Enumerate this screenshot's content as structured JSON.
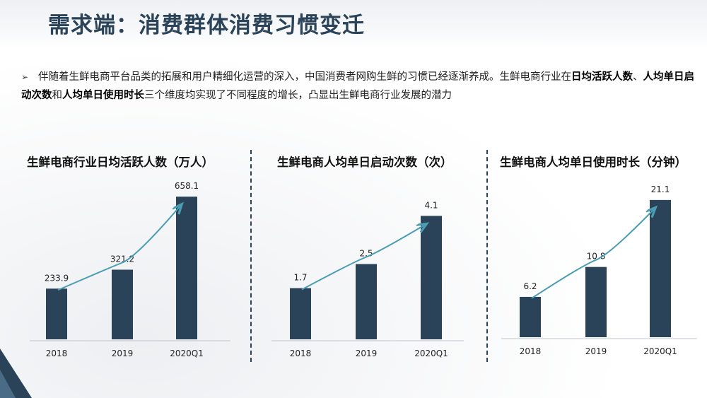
{
  "slide_title": "需求端：消费群体消费习惯变迁",
  "intro": {
    "bullet": "➢",
    "part1": "伴随着生鲜电商平台品类的拓展和用户精细化运营的深入，中国消费者网购生鲜的习惯已经逐渐养成。生鲜电商行业在",
    "bold1": "日均活跃人数",
    "sep1": "、",
    "bold2": "人均单日启动次数",
    "sep2": "和",
    "bold3": "人均单日使用时长",
    "part2": "三个维度均实现了不同程度的增长，凸显出生鲜电商行业发展的潜力"
  },
  "colors": {
    "bar": "#2b4358",
    "trend": "#4a9db3",
    "title": "#2b4358"
  },
  "chart_data": [
    {
      "type": "bar",
      "title": "生鲜电商行业日均活跃人数（万人）",
      "categories": [
        "2018",
        "2019",
        "2020Q1"
      ],
      "values": [
        233.9,
        321.2,
        658.1
      ],
      "labels": [
        "233.9",
        "321.2",
        "658.1"
      ],
      "ylim": [
        0,
        750
      ],
      "trend_arrow": true
    },
    {
      "type": "bar",
      "title": "生鲜电商人均单日启动次数（次）",
      "categories": [
        "2018",
        "2019",
        "2020Q1"
      ],
      "values": [
        1.7,
        2.5,
        4.1
      ],
      "labels": [
        "1.7",
        "2.5",
        "4.1"
      ],
      "ylim": [
        0,
        5.4
      ],
      "trend_arrow": true
    },
    {
      "type": "bar",
      "title": "生鲜电商人均单日使用时长（分钟）",
      "categories": [
        "2018",
        "2019",
        "2020Q1"
      ],
      "values": [
        6.2,
        10.8,
        21.1
      ],
      "labels": [
        "6.2",
        "10.8",
        "21.1"
      ],
      "ylim": [
        0,
        25
      ],
      "trend_arrow": true
    }
  ]
}
